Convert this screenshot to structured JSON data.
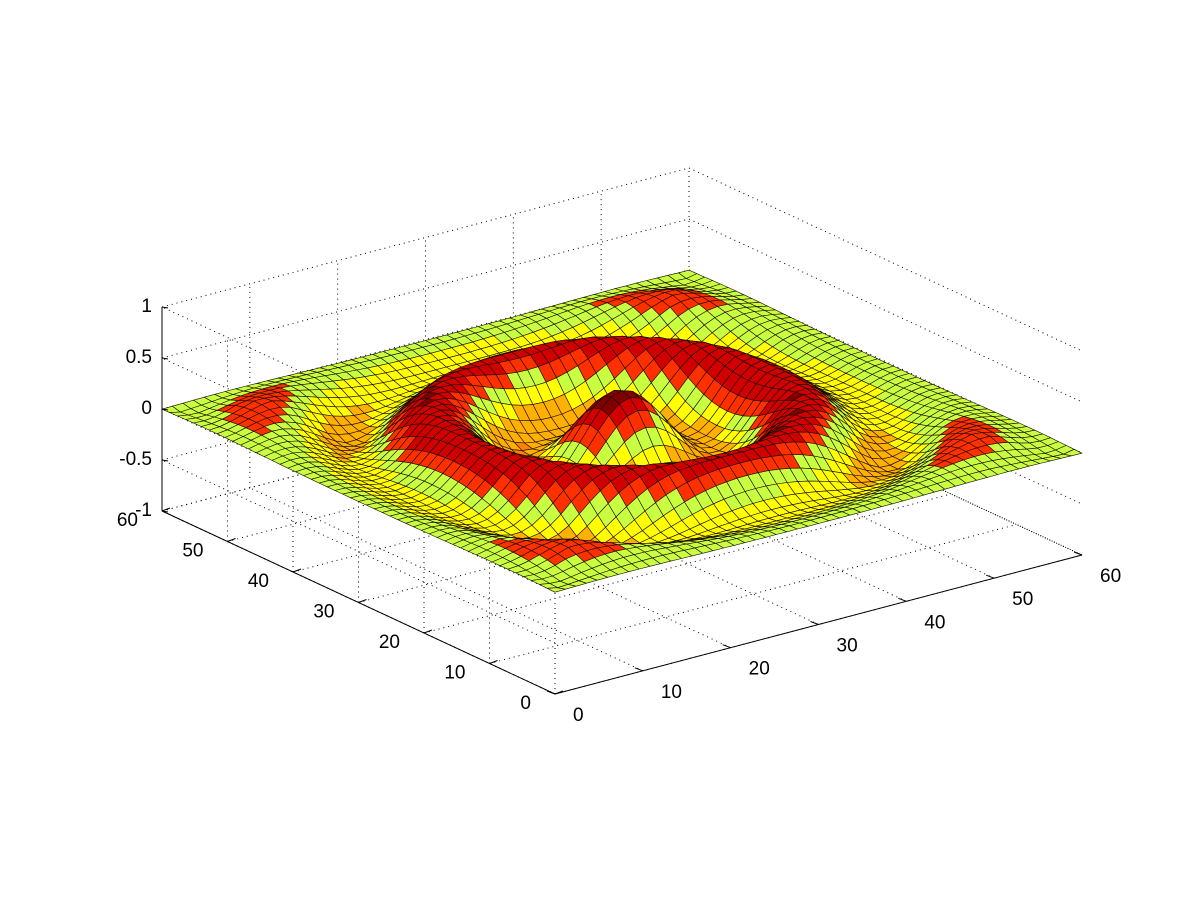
{
  "chart_data": {
    "type": "surface",
    "title": "",
    "xlabel": "",
    "ylabel": "",
    "zlabel": "",
    "function": "sin(r) with r measured from grid center; ring waves flattening at edges",
    "grid_size": [
      51,
      51
    ],
    "xlim": [
      0,
      60
    ],
    "ylim": [
      0,
      60
    ],
    "zlim": [
      -1,
      1
    ],
    "xticks": [
      "0",
      "10",
      "20",
      "30",
      "40",
      "50",
      "60"
    ],
    "yticks": [
      "0",
      "10",
      "20",
      "30",
      "40",
      "50",
      "60"
    ],
    "zticks": [
      "-1",
      "-0.5",
      "0",
      "0.5",
      "1"
    ],
    "grid": true,
    "colormap": [
      "#ff7f00",
      "#ffb000",
      "#ffff00",
      "#c8ff40",
      "#ff3000",
      "#d00000",
      "#800000"
    ],
    "view": "3d default (az -37.5, el 30)"
  }
}
